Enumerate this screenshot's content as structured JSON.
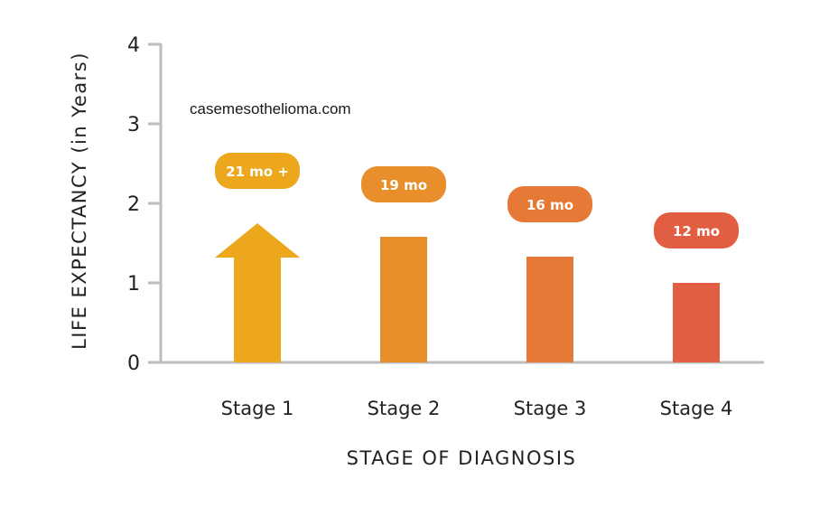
{
  "chart_data": {
    "type": "bar",
    "categories": [
      "Stage 1",
      "Stage 2",
      "Stage 3",
      "Stage 4"
    ],
    "values": [
      1.75,
      1.58,
      1.33,
      1.0
    ],
    "value_labels": [
      "21 mo +",
      "19 mo",
      "16 mo",
      "12 mo"
    ],
    "colors": [
      "#ECA71C",
      "#E88E2B",
      "#E57935",
      "#E15E43"
    ],
    "first_bar_is_arrow": true,
    "xlabel": "STAGE OF DIAGNOSIS",
    "ylabel": "LIFE EXPECTANCY (in Years)",
    "ylim": [
      0,
      4
    ],
    "yticks": [
      "0",
      "1",
      "2",
      "3",
      "4"
    ],
    "grid": false
  },
  "watermark": "casemesothelioma.com",
  "axis_color": "#BDBDBD"
}
